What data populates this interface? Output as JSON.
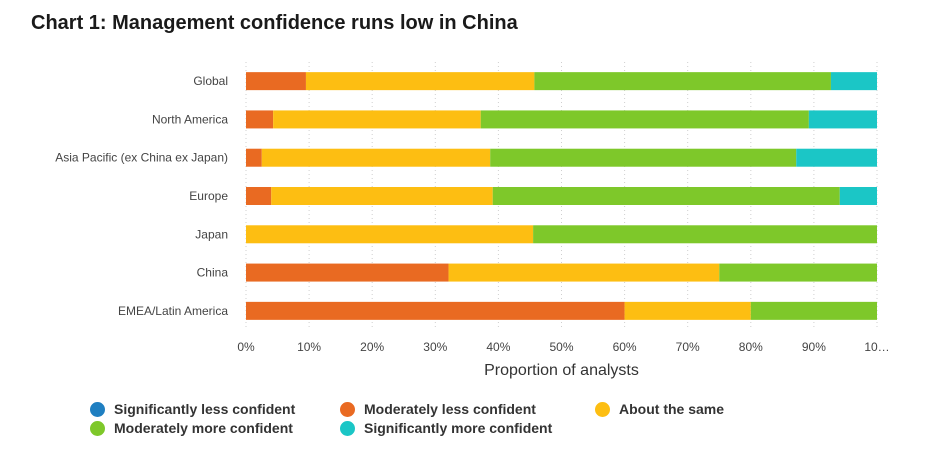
{
  "title": "Chart 1: Management confidence runs low in China",
  "chart_data": {
    "type": "bar",
    "orientation": "horizontal",
    "stacked": true,
    "categories": [
      "Global",
      "North America",
      "Asia Pacific (ex China ex Japan)",
      "Europe",
      "Japan",
      "China",
      "EMEA/Latin America"
    ],
    "series": [
      {
        "name": "Significantly less confident",
        "color": "#1f7fc1",
        "values": [
          0,
          0,
          0,
          0,
          0,
          0,
          0
        ]
      },
      {
        "name": "Moderately less confident",
        "color": "#e96a22",
        "values": [
          9.5,
          4.3,
          2.5,
          4.0,
          0,
          32.1,
          60.0
        ]
      },
      {
        "name": "About the same",
        "color": "#fdbe12",
        "values": [
          36.2,
          32.9,
          36.2,
          35.1,
          45.5,
          42.9,
          20.0
        ]
      },
      {
        "name": "Moderately more confident",
        "color": "#7ec82a",
        "values": [
          47.0,
          52.0,
          48.5,
          55.0,
          54.5,
          25.0,
          20.0
        ]
      },
      {
        "name": "Significantly more confident",
        "color": "#1bc6c6",
        "values": [
          7.3,
          10.8,
          12.8,
          5.9,
          0,
          0,
          0
        ]
      }
    ],
    "xlabel": "Proportion of analysts",
    "ylabel": "",
    "xlim": [
      0,
      100
    ],
    "x_ticks": [
      "0%",
      "10%",
      "20%",
      "30%",
      "40%",
      "50%",
      "60%",
      "70%",
      "80%",
      "90%",
      "10…"
    ],
    "grid": "vertical dotted",
    "legend_position": "bottom"
  }
}
